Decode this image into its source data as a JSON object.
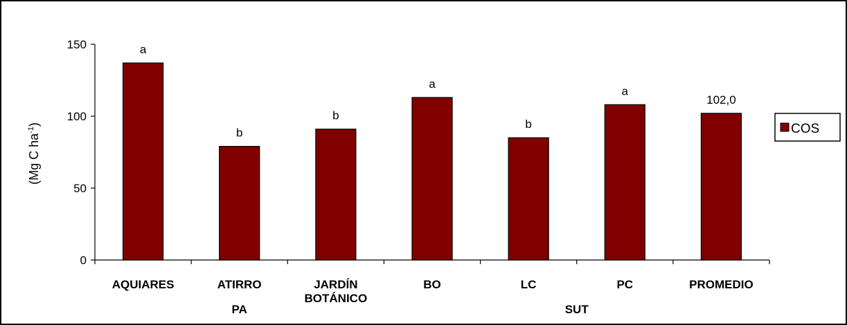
{
  "chart_data": {
    "type": "bar",
    "title": "",
    "xlabel": "",
    "ylabel": "(Mg C ha",
    "ylabel_sup": "-1",
    "ylabel_close": ")",
    "categories": [
      "AQUIARES",
      "ATIRRO",
      "JARDÍN BOTÁNICO",
      "BO",
      "LC",
      "PC",
      "PROMEDIO"
    ],
    "category_lines": [
      [
        "AQUIARES"
      ],
      [
        "ATIRRO"
      ],
      [
        "JARDÍN",
        "BOTÁNICO"
      ],
      [
        "BO"
      ],
      [
        "LC"
      ],
      [
        "PC"
      ],
      [
        "PROMEDIO"
      ]
    ],
    "groups": [
      {
        "label": "PA",
        "from": 0,
        "to": 2
      },
      {
        "label": "SUT",
        "from": 3,
        "to": 6
      }
    ],
    "series": [
      {
        "name": "COS",
        "color": "#800000",
        "values": [
          137,
          79,
          91,
          113,
          85,
          108,
          102
        ]
      }
    ],
    "annotations": [
      "a",
      "b",
      "b",
      "a",
      "b",
      "a",
      "102,0"
    ],
    "ylim": [
      0,
      150
    ],
    "yticks": [
      0,
      50,
      100,
      150
    ],
    "grid": false,
    "legend": "right"
  }
}
